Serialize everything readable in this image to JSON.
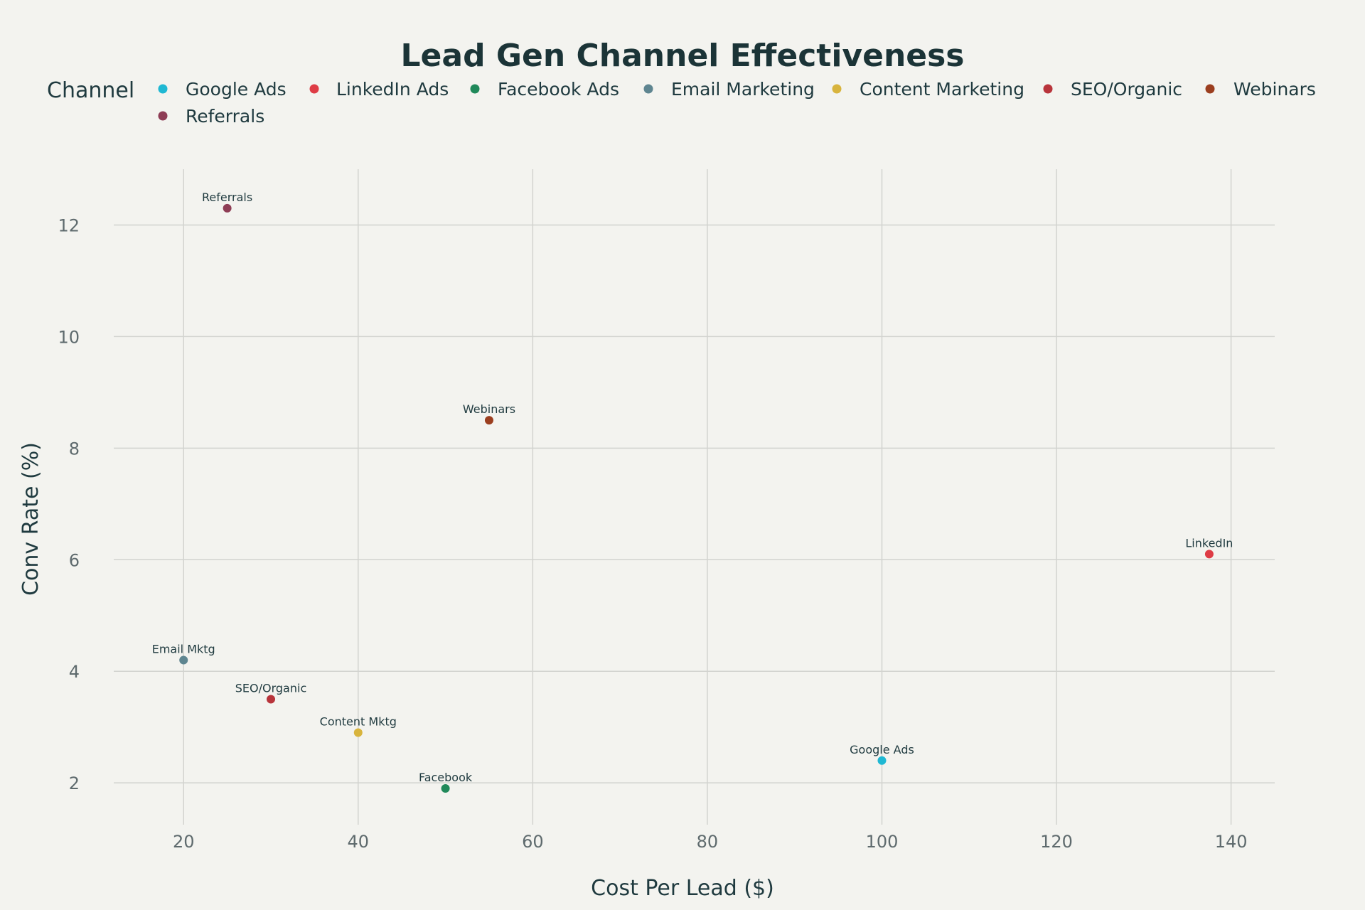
{
  "chart_data": {
    "type": "scatter",
    "title": "Lead Gen Channel Effectiveness",
    "xlabel": "Cost Per Lead ($)",
    "ylabel": "Conv Rate (%)",
    "xlim": [
      12,
      145
    ],
    "ylim": [
      1.25,
      13
    ],
    "xticks": [
      "20",
      "40",
      "60",
      "80",
      "100",
      "120",
      "140"
    ],
    "yticks": [
      "2",
      "4",
      "6",
      "8",
      "10",
      "12"
    ],
    "grid": true,
    "legend": {
      "title": "Channel",
      "placement": "top-left"
    },
    "series": [
      {
        "name": "Google Ads",
        "color": "#1fb8d3",
        "points": [
          {
            "x": 100,
            "y": 2.4,
            "label": "Google Ads"
          }
        ]
      },
      {
        "name": "LinkedIn Ads",
        "color": "#de3c45",
        "points": [
          {
            "x": 137.5,
            "y": 6.1,
            "label": "LinkedIn"
          }
        ]
      },
      {
        "name": "Facebook Ads",
        "color": "#20895a",
        "points": [
          {
            "x": 50,
            "y": 1.9,
            "label": "Facebook"
          }
        ]
      },
      {
        "name": "Email Marketing",
        "color": "#5e8590",
        "points": [
          {
            "x": 20,
            "y": 4.2,
            "label": "Email Mktg"
          }
        ]
      },
      {
        "name": "Content Marketing",
        "color": "#d8b43d",
        "points": [
          {
            "x": 40,
            "y": 2.9,
            "label": "Content Mktg"
          }
        ]
      },
      {
        "name": "SEO/Organic",
        "color": "#b8343b",
        "points": [
          {
            "x": 30,
            "y": 3.5,
            "label": "SEO/Organic"
          }
        ]
      },
      {
        "name": "Webinars",
        "color": "#9b3e1f",
        "points": [
          {
            "x": 55,
            "y": 8.5,
            "label": "Webinars"
          }
        ]
      },
      {
        "name": "Referrals",
        "color": "#8e3d55",
        "points": [
          {
            "x": 25,
            "y": 12.3,
            "label": "Referrals"
          }
        ]
      }
    ]
  }
}
